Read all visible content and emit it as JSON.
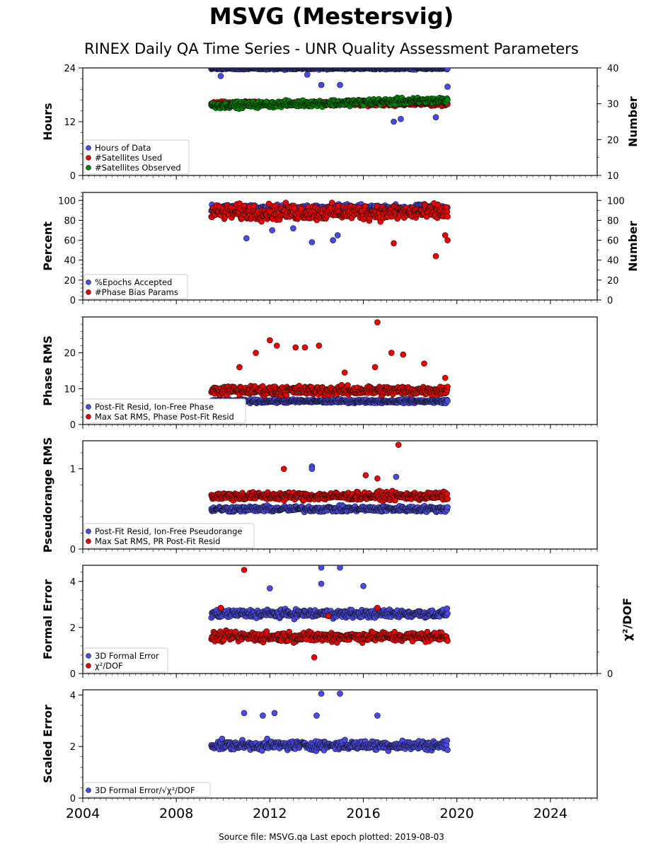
{
  "header": {
    "title": "MSVG (Mestersvig)",
    "subtitle": "RINEX Daily QA Time Series - UNR Quality Assessment Parameters"
  },
  "footer": {
    "text": "Source file: MSVG.qa Last epoch plotted: 2019-08-03"
  },
  "colors": {
    "blue": "#4a4ae8",
    "red": "#ee0000",
    "green": "#008800"
  },
  "chart_data": [
    {
      "type": "scatter",
      "ylabel": "Hours",
      "y2label": "Number",
      "ylim": [
        0,
        24
      ],
      "y2lim": [
        10,
        40
      ],
      "yticks": [
        "0",
        "12",
        "24"
      ],
      "y2ticks": [
        "10",
        "20",
        "30",
        "40"
      ],
      "xlim": [
        2004,
        2026
      ],
      "legend": "bottom-left",
      "series": [
        {
          "name": "Hours of Data",
          "color": "blue",
          "axis": "left",
          "range": [
            2009.5,
            2019.6
          ],
          "values": "daily values mostly 24 with sparse outliers",
          "level": 23.9,
          "spread": 0.25,
          "outliers": [
            [
              2009.9,
              22.2
            ],
            [
              2013.6,
              22.5
            ],
            [
              2014.2,
              20.2
            ],
            [
              2015.0,
              20.2
            ],
            [
              2017.3,
              12.0
            ],
            [
              2017.6,
              12.6
            ],
            [
              2019.1,
              13.0
            ],
            [
              2019.6,
              19.8
            ]
          ]
        },
        {
          "name": "#Satellites Used",
          "color": "red",
          "axis": "right",
          "range": [
            2009.5,
            2019.6
          ],
          "level": 30.0,
          "spread": 0.8,
          "outliers": []
        },
        {
          "name": "#Satellites Observed",
          "color": "green",
          "axis": "right",
          "range": [
            2009.5,
            2019.6
          ],
          "level": 29.5,
          "spread": 1.2,
          "trend": 1.5,
          "outliers": []
        }
      ]
    },
    {
      "type": "scatter",
      "ylabel": "Percent",
      "y2label": "Number",
      "ylim": [
        0,
        108
      ],
      "y2lim": [
        0,
        108
      ],
      "yticks": [
        "0",
        "20",
        "40",
        "60",
        "80",
        "100"
      ],
      "y2ticks": [
        "0",
        "20",
        "40",
        "60",
        "80",
        "100"
      ],
      "xlim": [
        2004,
        2026
      ],
      "legend": "bottom-left",
      "series": [
        {
          "name": "%Epochs Accepted",
          "color": "blue",
          "axis": "left",
          "range": [
            2009.5,
            2019.6
          ],
          "level": 92,
          "spread": 5,
          "outliers": [
            [
              2013.8,
              58
            ],
            [
              2014.7,
              60
            ],
            [
              2014.9,
              65
            ],
            [
              2011.0,
              62
            ],
            [
              2012.1,
              70
            ],
            [
              2013.0,
              72
            ]
          ]
        },
        {
          "name": "#Phase Bias Params",
          "color": "red",
          "axis": "right",
          "range": [
            2009.5,
            2019.6
          ],
          "level": 88,
          "spread": 11,
          "outliers": [
            [
              2017.3,
              57
            ],
            [
              2019.1,
              44
            ],
            [
              2019.6,
              60
            ],
            [
              2019.5,
              65
            ]
          ]
        }
      ]
    },
    {
      "type": "scatter",
      "ylabel": "Phase RMS",
      "ylim": [
        0,
        30
      ],
      "yticks": [
        "0",
        "10",
        "20"
      ],
      "xlim": [
        2004,
        2026
      ],
      "legend": "bottom-left",
      "series": [
        {
          "name": "Post-Fit Resid, Ion-Free Phase",
          "color": "blue",
          "axis": "left",
          "range": [
            2009.5,
            2019.6
          ],
          "level": 6.5,
          "spread": 0.7,
          "outliers": []
        },
        {
          "name": "Max Sat RMS, Phase Post-Fit Resid",
          "color": "red",
          "axis": "left",
          "range": [
            2009.5,
            2019.6
          ],
          "level": 9.5,
          "spread": 1.8,
          "outliers": [
            [
              2016.6,
              28.5
            ],
            [
              2012.0,
              23.5
            ],
            [
              2014.1,
              22.0
            ],
            [
              2012.3,
              22.0
            ],
            [
              2013.1,
              21.5
            ],
            [
              2013.5,
              21.5
            ],
            [
              2017.2,
              20.0
            ],
            [
              2017.7,
              19.5
            ],
            [
              2018.6,
              17.0
            ],
            [
              2011.4,
              20.0
            ],
            [
              2010.7,
              16.0
            ],
            [
              2015.2,
              14.5
            ],
            [
              2016.5,
              16.0
            ],
            [
              2019.5,
              13.0
            ]
          ]
        }
      ]
    },
    {
      "type": "scatter",
      "ylabel": "Pseudorange RMS",
      "ylim": [
        0,
        1.35
      ],
      "yticks": [
        "0",
        "1"
      ],
      "xlim": [
        2004,
        2026
      ],
      "legend": "bottom-left",
      "series": [
        {
          "name": "Post-Fit Resid, Ion-Free Pseudorange",
          "color": "blue",
          "axis": "left",
          "range": [
            2009.5,
            2019.6
          ],
          "level": 0.5,
          "spread": 0.05,
          "outliers": [
            [
              2013.8,
              1.03
            ],
            [
              2013.8,
              1.0
            ],
            [
              2017.4,
              0.9
            ]
          ]
        },
        {
          "name": "Max Sat RMS, PR Post-Fit Resid",
          "color": "red",
          "axis": "left",
          "range": [
            2009.5,
            2019.6
          ],
          "level": 0.66,
          "spread": 0.07,
          "outliers": [
            [
              2017.5,
              1.3
            ],
            [
              2012.6,
              1.0
            ],
            [
              2016.1,
              0.92
            ],
            [
              2016.6,
              0.88
            ]
          ]
        }
      ]
    },
    {
      "type": "scatter",
      "ylabel": "Formal Error",
      "y2label": "χ²/DOF",
      "ylim": [
        0,
        4.7
      ],
      "yticks": [
        "0",
        "2",
        "4"
      ],
      "y2ticks": [
        "0"
      ],
      "xlim": [
        2004,
        2026
      ],
      "legend": "bottom-left",
      "series": [
        {
          "name": "3D Formal Error",
          "color": "blue",
          "axis": "left",
          "range": [
            2009.5,
            2019.6
          ],
          "level": 2.6,
          "spread": 0.25,
          "outliers": [
            [
              2014.2,
              4.6
            ],
            [
              2015.0,
              4.6
            ],
            [
              2014.2,
              3.9
            ],
            [
              2012.0,
              3.7
            ],
            [
              2016.0,
              3.8
            ]
          ]
        },
        {
          "name": "χ²/DOF",
          "color": "red",
          "axis": "left",
          "range": [
            2009.5,
            2019.6
          ],
          "level": 1.6,
          "spread": 0.3,
          "outliers": [
            [
              2010.9,
              4.5
            ],
            [
              2016.6,
              2.85
            ],
            [
              2013.9,
              0.7
            ],
            [
              2009.9,
              2.85
            ],
            [
              2014.5,
              2.5
            ]
          ]
        }
      ]
    },
    {
      "type": "scatter",
      "ylabel": "Scaled Error",
      "ylim": [
        0,
        4.2
      ],
      "yticks": [
        "0",
        "2",
        "4"
      ],
      "xlim": [
        2004,
        2026
      ],
      "xticks": [
        "2004",
        "2008",
        "2012",
        "2016",
        "2020",
        "2024"
      ],
      "legend": "bottom-left",
      "series": [
        {
          "name": "3D Formal Error/√χ²/DOF",
          "color": "blue",
          "axis": "left",
          "range": [
            2009.5,
            2019.6
          ],
          "level": 2.05,
          "spread": 0.25,
          "outliers": [
            [
              2014.2,
              4.05
            ],
            [
              2015.0,
              4.05
            ],
            [
              2010.9,
              3.3
            ],
            [
              2012.2,
              3.3
            ],
            [
              2011.7,
              3.2
            ],
            [
              2016.6,
              3.2
            ],
            [
              2014.0,
              3.2
            ]
          ]
        }
      ]
    }
  ]
}
